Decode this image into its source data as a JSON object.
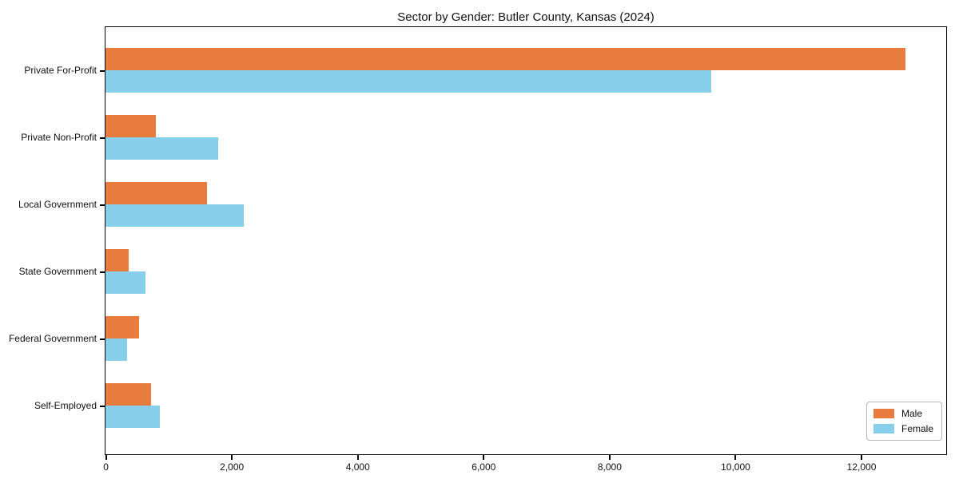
{
  "chart_data": {
    "type": "bar",
    "orientation": "horizontal",
    "title": "Sector by Gender: Butler County, Kansas (2024)",
    "categories": [
      "Private For-Profit",
      "Private Non-Profit",
      "Local Government",
      "State Government",
      "Federal Government",
      "Self-Employed"
    ],
    "series": [
      {
        "name": "Male",
        "color": "#e87c3e",
        "values": [
          12700,
          800,
          1610,
          370,
          530,
          720
        ]
      },
      {
        "name": "Female",
        "color": "#87ceea",
        "values": [
          9620,
          1790,
          2200,
          640,
          340,
          860
        ]
      }
    ],
    "xlabel": "",
    "ylabel": "",
    "xlim": [
      0,
      13340
    ],
    "xticks": {
      "values": [
        0,
        2000,
        4000,
        6000,
        8000,
        10000,
        12000
      ],
      "labels": [
        "0",
        "2,000",
        "4,000",
        "6,000",
        "8,000",
        "10,000",
        "12,000"
      ]
    },
    "grid": "off",
    "legend_position": "lower right",
    "spine_color": "#000000",
    "background_color": "#ffffff"
  }
}
